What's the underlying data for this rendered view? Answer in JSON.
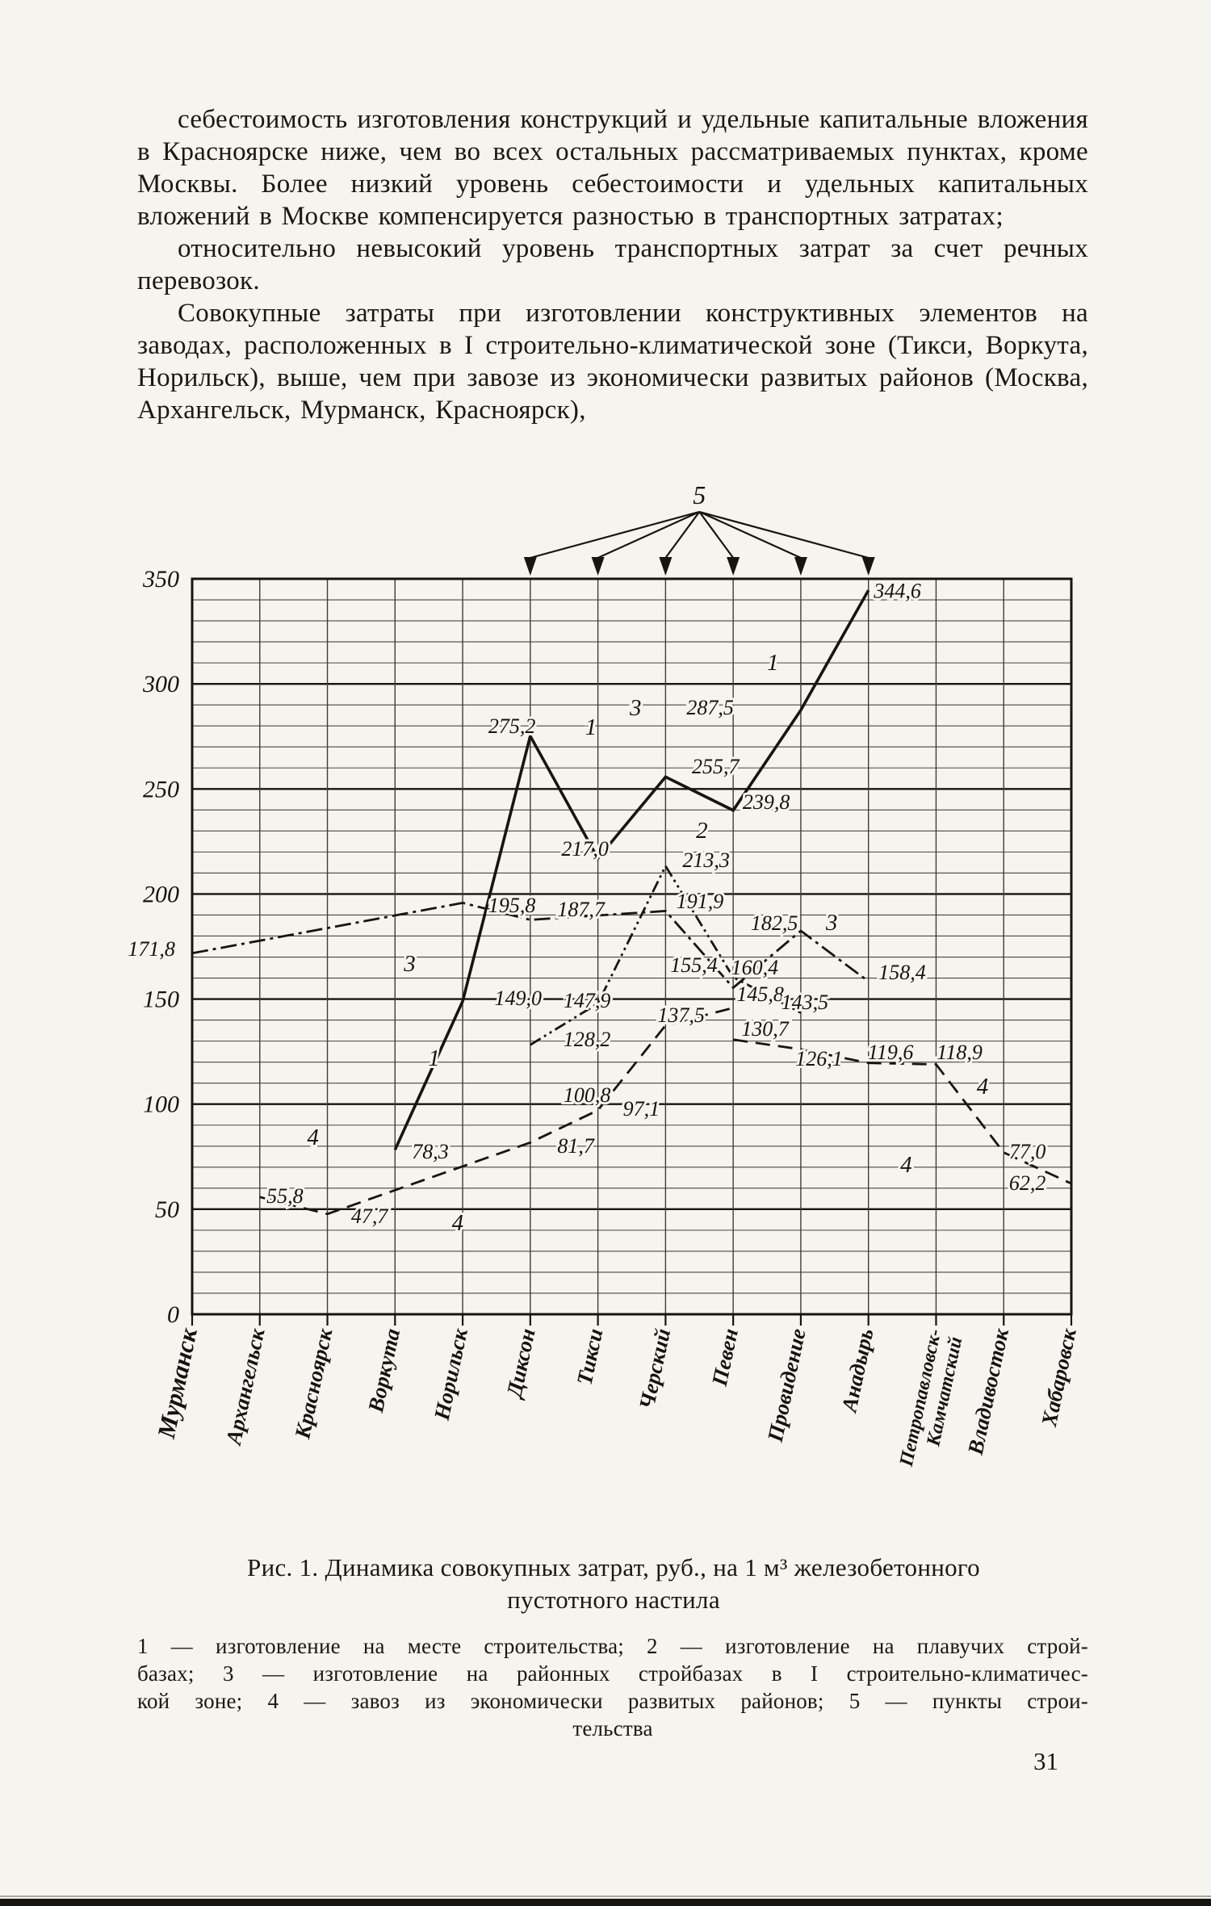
{
  "page": {
    "background": "#f6f4ee",
    "ink": "#17150f",
    "page_number": "31",
    "paragraphs": [
      "себестоимость изготовления конструкций и удельные капитальные вложения в Красноярске ниже, чем во всех остальных рассматриваемых пунктах, кроме Москвы. Более низкий уровень себестоимости и удельных капитальных вложений в Москве компенсируется разностью в транспортных затратах;",
      "относительно невысокий уровень транспортных затрат за счет речных перевозок.",
      "Совокупные затраты при изготовлении конструктивных элементов на заводах, расположенных в I строительно-климатической зоне (Тикси, Воркута, Норильск), выше, чем при завозе из экономически развитых районов (Москва, Архангельск, Мурманск, Красноярск),"
    ]
  },
  "figure": {
    "caption_line1": "Рис. 1. Динамика совокупных затрат, руб., на 1 м³ железобетонного",
    "caption_line2": "пустотного настила",
    "legend_lines": [
      "1 — изготовление на месте строительства; 2 — изготовление на плавучих строй-",
      "базах; 3 — изготовление на районных стройбазах в I строительно-климатичес-",
      "кой зоне; 4 — завоз из экономически развитых районов; 5 — пункты строи-",
      "тельства"
    ]
  },
  "chart_data": {
    "type": "line",
    "title": "Динамика совокупных затрат, руб., на 1 м³ железобетонного пустотного настила",
    "ylabel": "руб. на 1 м³",
    "ylim": [
      0,
      350
    ],
    "ytick_step": 50,
    "minor_step": 10,
    "grid": true,
    "categories": [
      "Мурманск",
      "Архангельск",
      "Красноярск",
      "Воркута",
      "Норильск",
      "Диксон",
      "Тикси",
      "Черский",
      "Певен",
      "Провидение",
      "Анадырь",
      "Петропавловск-Камчатский",
      "Владивосток",
      "Хабаровск"
    ],
    "construction_marker_label": "5",
    "construction_point_indices": [
      5,
      6,
      7,
      8,
      9,
      10
    ],
    "series": [
      {
        "id": "1",
        "name": "изготовление на месте строительства",
        "dash": "solid",
        "points": [
          [
            3,
            78.3
          ],
          [
            4,
            149.0
          ],
          [
            5,
            275.2
          ],
          [
            6,
            217.0
          ],
          [
            7,
            255.7
          ],
          [
            8,
            239.8
          ],
          [
            9,
            287.5
          ],
          [
            10,
            344.6
          ]
        ]
      },
      {
        "id": "2",
        "name": "изготовление на плавучих стройбазах",
        "dash": "dashdot2",
        "points": [
          [
            5,
            128.2
          ],
          [
            6,
            147.9
          ],
          [
            7,
            213.3
          ],
          [
            8,
            160.4
          ],
          [
            9,
            143.5
          ]
        ]
      },
      {
        "id": "3",
        "name": "изготовление на районных стройбазах в I строительно-климатической зоне",
        "dash": "dashdot",
        "points": [
          [
            0,
            171.8
          ],
          [
            4,
            195.8
          ],
          [
            5,
            187.7
          ],
          [
            7,
            191.9
          ],
          [
            8,
            155.4
          ],
          [
            9,
            182.5
          ],
          [
            10,
            158.4
          ]
        ]
      },
      {
        "id": "4",
        "name": "завоз из экономически развитых районов",
        "dash": "dashed",
        "points": [
          [
            1,
            55.8
          ],
          [
            2,
            47.7
          ],
          [
            5,
            81.7
          ],
          [
            6,
            97.1
          ],
          [
            7,
            137.5
          ],
          [
            8,
            145.8
          ]
        ]
      },
      {
        "id": "4",
        "name": "завоз из экономически развитых районов",
        "dash": "dashed",
        "points": [
          [
            8,
            130.7
          ],
          [
            9,
            126.1
          ],
          [
            10,
            119.6
          ],
          [
            11,
            118.9
          ],
          [
            12,
            77.0
          ],
          [
            13,
            62.2
          ]
        ]
      }
    ],
    "point_labels": [
      {
        "t": "344,6",
        "x": 10.08,
        "y": 341.0
      },
      {
        "t": "287,5",
        "x": 7.31,
        "y": 285.4
      },
      {
        "t": "275,2",
        "x": 4.38,
        "y": 276.6
      },
      {
        "t": "255,7",
        "x": 7.39,
        "y": 257.4
      },
      {
        "t": "239,8",
        "x": 8.14,
        "y": 240.5
      },
      {
        "t": "217,0",
        "x": 5.46,
        "y": 218.2
      },
      {
        "t": "213,3",
        "x": 7.25,
        "y": 212.8
      },
      {
        "t": "195,8",
        "x": 4.38,
        "y": 191.3
      },
      {
        "t": "191,9",
        "x": 7.16,
        "y": 193.2
      },
      {
        "t": "187,7",
        "x": 5.4,
        "y": 189.4
      },
      {
        "t": "182,5",
        "x": 8.26,
        "y": 182.9
      },
      {
        "t": "171,8",
        "x": -0.95,
        "y": 170.6
      },
      {
        "t": "160,4",
        "x": 7.97,
        "y": 161.7
      },
      {
        "t": "158,4",
        "x": 10.15,
        "y": 159.4
      },
      {
        "t": "155,4",
        "x": 7.07,
        "y": 162.9
      },
      {
        "t": "149,0",
        "x": 4.47,
        "y": 147.1
      },
      {
        "t": "147,9",
        "x": 5.49,
        "y": 146.0
      },
      {
        "t": "145,8",
        "x": 8.05,
        "y": 149.1
      },
      {
        "t": "143,5",
        "x": 8.71,
        "y": 145.2
      },
      {
        "t": "137,5",
        "x": 6.88,
        "y": 139.1
      },
      {
        "t": "130,7",
        "x": 8.12,
        "y": 132.5
      },
      {
        "t": "128,2",
        "x": 5.49,
        "y": 127.5
      },
      {
        "t": "126,1",
        "x": 8.92,
        "y": 118.3
      },
      {
        "t": "119,6",
        "x": 9.99,
        "y": 121.4
      },
      {
        "t": "118,9",
        "x": 11.01,
        "y": 121.4
      },
      {
        "t": "100,8",
        "x": 5.49,
        "y": 101.0
      },
      {
        "t": "97,1",
        "x": 6.37,
        "y": 94.5
      },
      {
        "t": "81,7",
        "x": 5.4,
        "y": 76.8
      },
      {
        "t": "78,3",
        "x": 3.25,
        "y": 74.1
      },
      {
        "t": "77,0",
        "x": 12.08,
        "y": 74.1
      },
      {
        "t": "62,2",
        "x": 12.08,
        "y": 59.2
      },
      {
        "t": "55,8",
        "x": 1.1,
        "y": 53.0
      },
      {
        "t": "47,7",
        "x": 2.35,
        "y": 43.4
      }
    ],
    "curve_labels": [
      {
        "t": "1",
        "x": 5.81,
        "y": 275.8
      },
      {
        "t": "1",
        "x": 8.5,
        "y": 306.6
      },
      {
        "t": "1",
        "x": 3.49,
        "y": 118.3
      },
      {
        "t": "2",
        "x": 7.45,
        "y": 226.7
      },
      {
        "t": "3",
        "x": 6.47,
        "y": 285.1
      },
      {
        "t": "3",
        "x": 3.13,
        "y": 163.3
      },
      {
        "t": "3",
        "x": 9.37,
        "y": 182.9
      },
      {
        "t": "4",
        "x": 1.7,
        "y": 80.7
      },
      {
        "t": "4",
        "x": 3.84,
        "y": 40.0
      },
      {
        "t": "4",
        "x": 10.47,
        "y": 67.6
      },
      {
        "t": "4",
        "x": 11.6,
        "y": 104.9
      }
    ]
  }
}
